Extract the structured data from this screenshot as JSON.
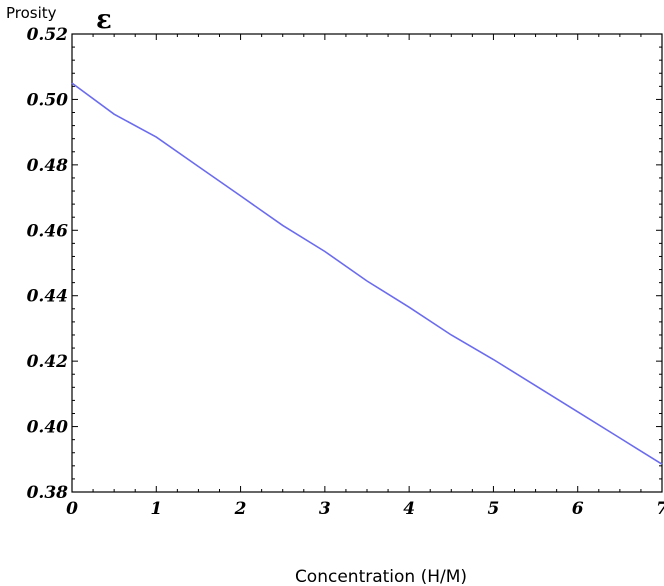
{
  "chart_data": {
    "type": "line",
    "ylabel": "Prosity",
    "ylabel_symbol": "ε",
    "xlabel": "Concentration (H/M)",
    "xlim": [
      0,
      7
    ],
    "ylim": [
      0.38,
      0.52
    ],
    "x_ticks": [
      0,
      1,
      2,
      3,
      4,
      5,
      6,
      7
    ],
    "x_tick_labels": [
      "0",
      "1",
      "2",
      "3",
      "4",
      "5",
      "6",
      "7"
    ],
    "y_ticks": [
      0.38,
      0.4,
      0.42,
      0.44,
      0.46,
      0.48,
      0.5,
      0.52
    ],
    "y_tick_labels": [
      "0.38",
      "0.40",
      "0.42",
      "0.44",
      "0.46",
      "0.48",
      "0.50",
      "0.52"
    ],
    "grid": false,
    "series": [
      {
        "color": "#6b6bef",
        "x": [
          0,
          0.5,
          1,
          1.5,
          2,
          2.5,
          3,
          3.5,
          4,
          4.5,
          5,
          5.5,
          6,
          6.5,
          7
        ],
        "y": [
          0.505,
          0.4955,
          0.4885,
          0.4795,
          0.4705,
          0.4615,
          0.4535,
          0.4445,
          0.4365,
          0.428,
          0.4205,
          0.4125,
          0.4045,
          0.3965,
          0.3885
        ]
      }
    ]
  }
}
